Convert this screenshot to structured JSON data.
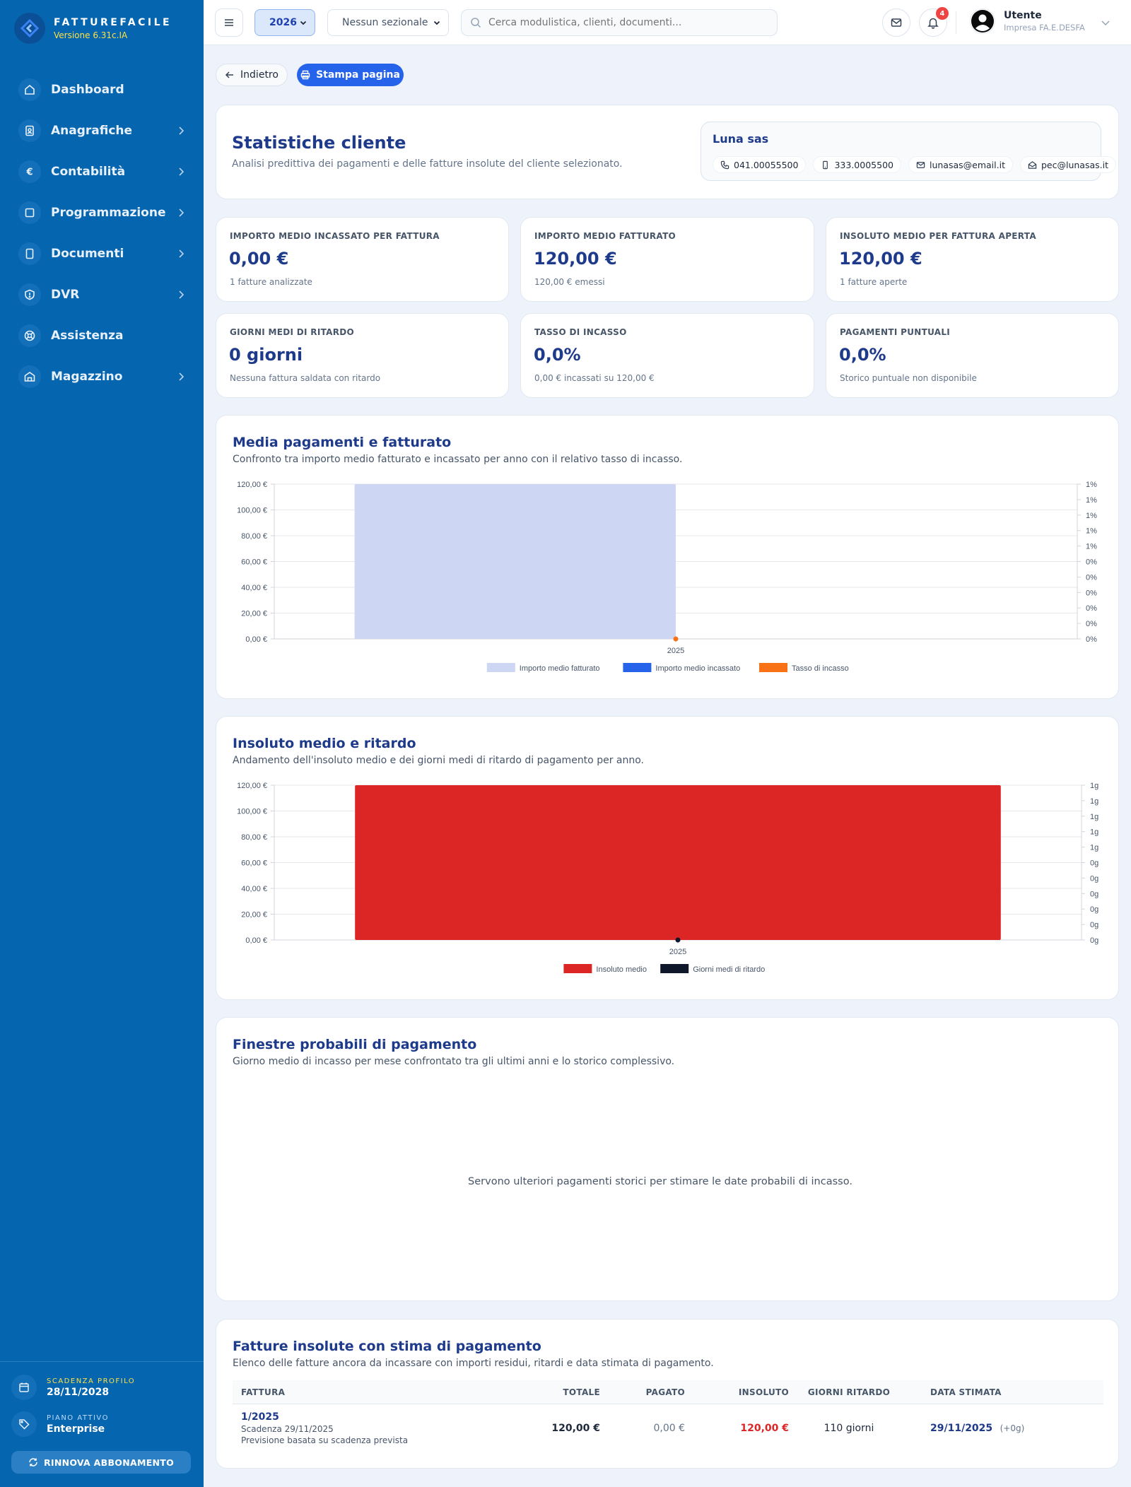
{
  "brand": {
    "name": "FATTUREFACILE",
    "version": "Versione 6.31c.IA"
  },
  "sidebar": {
    "items": [
      {
        "label": "Dashboard",
        "icon": "home-icon",
        "has_submenu": false
      },
      {
        "label": "Anagrafiche",
        "icon": "address-book-icon",
        "has_submenu": true
      },
      {
        "label": "Contabilità",
        "icon": "euro-icon",
        "has_submenu": true
      },
      {
        "label": "Programmazione",
        "icon": "calendar-icon",
        "has_submenu": true
      },
      {
        "label": "Documenti",
        "icon": "document-icon",
        "has_submenu": true
      },
      {
        "label": "DVR",
        "icon": "shield-icon",
        "has_submenu": true
      },
      {
        "label": "Assistenza",
        "icon": "lifebuoy-icon",
        "has_submenu": false
      },
      {
        "label": "Magazzino",
        "icon": "warehouse-icon",
        "has_submenu": true
      }
    ],
    "profile": {
      "caption": "SCADENZA PROFILO",
      "value": "28/11/2028"
    },
    "plan": {
      "caption": "PIANO ATTIVO",
      "value": "Enterprise"
    },
    "renew_label": "RINNOVA ABBONAMENTO"
  },
  "topbar": {
    "year": "2026",
    "sezionale": "Nessun sezionale",
    "search_placeholder": "Cerca modulistica, clienti, documenti...",
    "notifications": "4",
    "user_name": "Utente",
    "user_company": "Impresa FA.E.DESFA"
  },
  "actions": {
    "back": "Indietro",
    "print": "Stampa pagina"
  },
  "header": {
    "title": "Statistiche cliente",
    "subtitle": "Analisi predittiva dei pagamenti e delle fatture insolute del cliente selezionato."
  },
  "client": {
    "name": "Luna sas",
    "phone": "041.00055500",
    "mobile": "333.0005500",
    "email": "lunasas@email.it",
    "pec": "pec@lunasas.it"
  },
  "kpis": [
    {
      "caption": "IMPORTO MEDIO INCASSATO PER FATTURA",
      "value": "0,00 €",
      "sub": "1 fatture analizzate"
    },
    {
      "caption": "IMPORTO MEDIO FATTURATO",
      "value": "120,00 €",
      "sub": "120,00 € emessi"
    },
    {
      "caption": "INSOLUTO MEDIO PER FATTURA APERTA",
      "value": "120,00 €",
      "sub": "1 fatture aperte"
    },
    {
      "caption": "GIORNI MEDI DI RITARDO",
      "value": "0 giorni",
      "sub": "Nessuna fattura saldata con ritardo"
    },
    {
      "caption": "TASSO DI INCASSO",
      "value": "0,0%",
      "sub": "0,00 € incassati su 120,00 €"
    },
    {
      "caption": "PAGAMENTI PUNTUALI",
      "value": "0,0%",
      "sub": "Storico puntuale non disponibile"
    }
  ],
  "sections": {
    "chart1": {
      "title": "Media pagamenti e fatturato",
      "subtitle": "Confronto tra importo medio fatturato e incassato per anno con il relativo tasso di incasso."
    },
    "chart2": {
      "title": "Insoluto medio e ritardo",
      "subtitle": "Andamento dell'insoluto medio e dei giorni medi di ritardo di pagamento per anno."
    },
    "windows": {
      "title": "Finestre probabili di pagamento",
      "subtitle": "Giorno medio di incasso per mese confrontato tra gli ultimi anni e lo storico complessivo.",
      "empty": "Servono ulteriori pagamenti storici per stimare le date probabili di incasso."
    },
    "table": {
      "title": "Fatture insolute con stima di pagamento",
      "subtitle": "Elenco delle fatture ancora da incassare con importi residui, ritardi e data stimata di pagamento."
    }
  },
  "chart_data": [
    {
      "type": "bar",
      "categories": [
        "2025"
      ],
      "series": [
        {
          "name": "Importo medio fatturato",
          "values": [
            120
          ],
          "color": "#cdd7f4",
          "axis": "left"
        },
        {
          "name": "Importo medio incassato",
          "values": [
            0
          ],
          "color": "#2563eb",
          "axis": "left"
        },
        {
          "name": "Tasso di incasso",
          "values": [
            0
          ],
          "color": "#f97316",
          "axis": "right",
          "kind": "line"
        }
      ],
      "ylim": [
        0,
        120
      ],
      "y_ticks": [
        "0,00 €",
        "20,00 €",
        "40,00 €",
        "60,00 €",
        "80,00 €",
        "100,00 €",
        "120,00 €"
      ],
      "y2_ticks": [
        "0%",
        "0%",
        "0%",
        "0%",
        "0%",
        "0%",
        "1%",
        "1%",
        "1%",
        "1%",
        "1%"
      ],
      "legend": "bottom",
      "grid": true
    },
    {
      "type": "bar",
      "categories": [
        "2025"
      ],
      "series": [
        {
          "name": "Insoluto medio",
          "values": [
            120
          ],
          "color": "#dc2626",
          "axis": "left"
        },
        {
          "name": "Giorni medi di ritardo",
          "values": [
            0
          ],
          "color": "#0f172a",
          "axis": "right",
          "kind": "line"
        }
      ],
      "ylim": [
        0,
        120
      ],
      "y_ticks": [
        "0,00 €",
        "20,00 €",
        "40,00 €",
        "60,00 €",
        "80,00 €",
        "100,00 €",
        "120,00 €"
      ],
      "y2_ticks": [
        "0g",
        "0g",
        "0g",
        "0g",
        "0g",
        "0g",
        "1g",
        "1g",
        "1g",
        "1g",
        "1g"
      ],
      "legend": "bottom",
      "grid": true
    }
  ],
  "table": {
    "headers": [
      "FATTURA",
      "TOTALE",
      "PAGATO",
      "INSOLUTO",
      "GIORNI RITARDO",
      "DATA STIMATA"
    ],
    "rows": [
      {
        "number": "1/2025",
        "due": "Scadenza 29/11/2025",
        "note": "Previsione basata su scadenza prevista",
        "total": "120,00 €",
        "paid": "0,00 €",
        "unpaid": "120,00 €",
        "delay": "110 giorni",
        "date": "29/11/2025",
        "delta": "(+0g)"
      }
    ]
  },
  "colors": {
    "sidebar": "#0565ae",
    "accent": "#2563eb",
    "title": "#1e3a8a",
    "danger": "#dc2626"
  }
}
